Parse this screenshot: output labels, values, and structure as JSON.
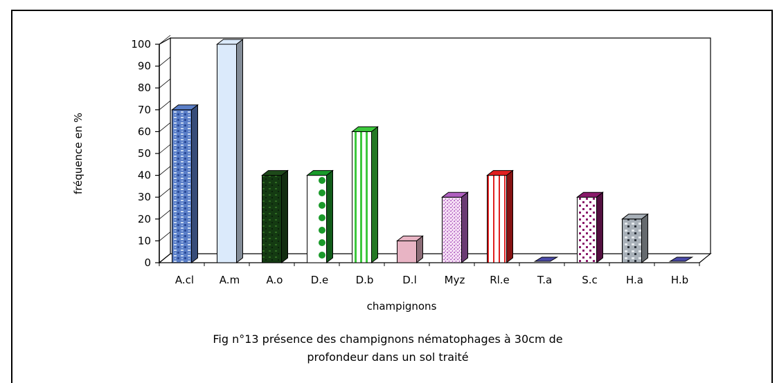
{
  "chart_data": {
    "type": "bar",
    "categories": [
      "A.cl",
      "A.m",
      "A.o",
      "D.e",
      "D.b",
      "D.l",
      "Myz",
      "Rl.e",
      "T.a",
      "S.c",
      "H.a",
      "H.b"
    ],
    "values": [
      70,
      100,
      40,
      40,
      60,
      10,
      30,
      40,
      0,
      30,
      20,
      0
    ],
    "xlabel": "champignons",
    "ylabel": "fréquence en %",
    "ylim": [
      0,
      100
    ],
    "yticks": [
      0,
      10,
      20,
      30,
      40,
      50,
      60,
      70,
      80,
      90,
      100
    ],
    "grid": false,
    "legend": "none",
    "three_d": true
  },
  "caption": {
    "line1": "Fig n°13 présence des champignons nématophages à 30cm de",
    "line2": "profondeur  dans un sol traité"
  },
  "colors": {
    "A.cl": "#5b7fc8",
    "A.m": "#dbeafb",
    "A.o": "#1e4a1a",
    "D.e": "#1a9a2a",
    "D.b": "#3cc83c",
    "D.l": "#e8b4c4",
    "Myz": "#b060c0",
    "Rl.e": "#e02020",
    "T.a": "#4a4aa8",
    "S.c": "#8a1a6a",
    "H.a": "#a8b0b8",
    "H.b": "#4a4aa8"
  }
}
